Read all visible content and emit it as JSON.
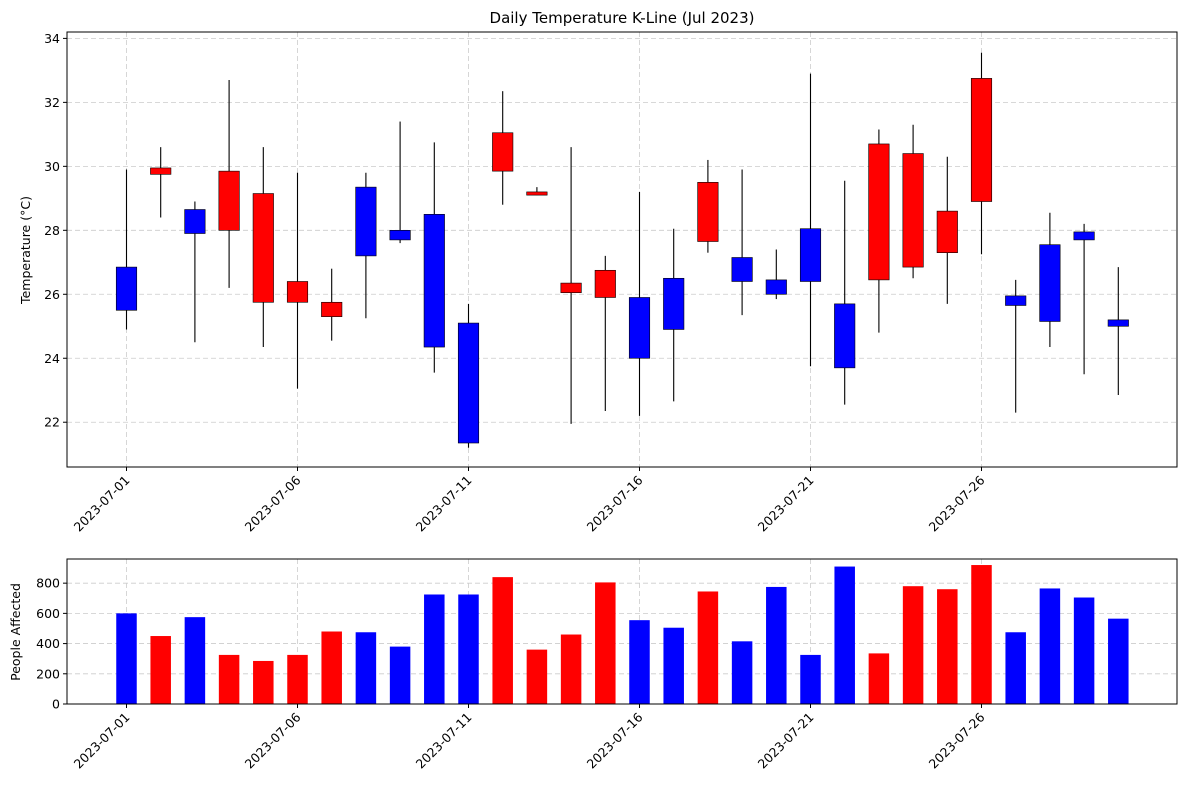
{
  "chart_data": [
    {
      "type": "candlestick",
      "title": "Daily Temperature K-Line (Jul 2023)",
      "xlabel": "",
      "ylabel": "Temperature (°C)",
      "ylim": [
        20.6,
        34.2
      ],
      "yticks": [
        22,
        24,
        26,
        28,
        30,
        32,
        34
      ],
      "xtick_labels": [
        "2023-07-01",
        "2023-07-06",
        "2023-07-11",
        "2023-07-16",
        "2023-07-21",
        "2023-07-26"
      ],
      "xtick_indices": [
        0,
        5,
        10,
        15,
        20,
        25
      ],
      "colors": {
        "up": "#ff0000",
        "down": "#0000ff",
        "wick": "#000000"
      },
      "grid": true,
      "dates": [
        "2023-07-01",
        "2023-07-02",
        "2023-07-03",
        "2023-07-04",
        "2023-07-05",
        "2023-07-06",
        "2023-07-07",
        "2023-07-08",
        "2023-07-09",
        "2023-07-10",
        "2023-07-11",
        "2023-07-12",
        "2023-07-13",
        "2023-07-14",
        "2023-07-15",
        "2023-07-16",
        "2023-07-17",
        "2023-07-18",
        "2023-07-19",
        "2023-07-20",
        "2023-07-21",
        "2023-07-22",
        "2023-07-23",
        "2023-07-24",
        "2023-07-25",
        "2023-07-26",
        "2023-07-27",
        "2023-07-28",
        "2023-07-29",
        "2023-07-30"
      ],
      "candles": [
        {
          "o": 25.5,
          "h": 29.9,
          "l": 24.9,
          "c": 26.85,
          "dir": "down"
        },
        {
          "o": 29.75,
          "h": 30.6,
          "l": 28.4,
          "c": 29.95,
          "dir": "up"
        },
        {
          "o": 27.9,
          "h": 28.9,
          "l": 24.5,
          "c": 28.65,
          "dir": "down"
        },
        {
          "o": 28.0,
          "h": 32.7,
          "l": 26.2,
          "c": 29.85,
          "dir": "up"
        },
        {
          "o": 25.75,
          "h": 30.6,
          "l": 24.35,
          "c": 29.15,
          "dir": "up"
        },
        {
          "o": 25.75,
          "h": 29.8,
          "l": 23.05,
          "c": 26.4,
          "dir": "up"
        },
        {
          "o": 25.3,
          "h": 26.8,
          "l": 24.55,
          "c": 25.75,
          "dir": "up"
        },
        {
          "o": 27.2,
          "h": 29.8,
          "l": 25.25,
          "c": 29.35,
          "dir": "down"
        },
        {
          "o": 27.7,
          "h": 31.4,
          "l": 27.6,
          "c": 28.0,
          "dir": "down"
        },
        {
          "o": 24.35,
          "h": 30.75,
          "l": 23.55,
          "c": 28.5,
          "dir": "down"
        },
        {
          "o": 21.35,
          "h": 25.7,
          "l": 21.2,
          "c": 25.1,
          "dir": "down"
        },
        {
          "o": 29.85,
          "h": 32.35,
          "l": 28.8,
          "c": 31.05,
          "dir": "up"
        },
        {
          "o": 29.1,
          "h": 29.35,
          "l": 29.1,
          "c": 29.2,
          "dir": "up"
        },
        {
          "o": 26.05,
          "h": 30.6,
          "l": 21.95,
          "c": 26.35,
          "dir": "up"
        },
        {
          "o": 25.9,
          "h": 27.2,
          "l": 22.35,
          "c": 26.75,
          "dir": "up"
        },
        {
          "o": 24.0,
          "h": 29.2,
          "l": 22.2,
          "c": 25.9,
          "dir": "down"
        },
        {
          "o": 24.9,
          "h": 28.05,
          "l": 22.65,
          "c": 26.5,
          "dir": "down"
        },
        {
          "o": 27.65,
          "h": 30.2,
          "l": 27.3,
          "c": 29.5,
          "dir": "up"
        },
        {
          "o": 26.4,
          "h": 29.9,
          "l": 25.35,
          "c": 27.15,
          "dir": "down"
        },
        {
          "o": 26.0,
          "h": 27.4,
          "l": 25.85,
          "c": 26.45,
          "dir": "down"
        },
        {
          "o": 26.4,
          "h": 32.9,
          "l": 23.75,
          "c": 28.05,
          "dir": "down"
        },
        {
          "o": 23.7,
          "h": 29.55,
          "l": 22.55,
          "c": 25.7,
          "dir": "down"
        },
        {
          "o": 26.45,
          "h": 31.15,
          "l": 24.8,
          "c": 30.7,
          "dir": "up"
        },
        {
          "o": 26.85,
          "h": 31.3,
          "l": 26.5,
          "c": 30.4,
          "dir": "up"
        },
        {
          "o": 27.3,
          "h": 30.3,
          "l": 25.7,
          "c": 28.6,
          "dir": "up"
        },
        {
          "o": 28.9,
          "h": 33.55,
          "l": 27.25,
          "c": 32.75,
          "dir": "up"
        },
        {
          "o": 25.65,
          "h": 26.45,
          "l": 22.3,
          "c": 25.95,
          "dir": "down"
        },
        {
          "o": 25.15,
          "h": 28.55,
          "l": 24.35,
          "c": 27.55,
          "dir": "down"
        },
        {
          "o": 27.7,
          "h": 28.2,
          "l": 23.5,
          "c": 27.95,
          "dir": "down"
        },
        {
          "o": 25.0,
          "h": 26.85,
          "l": 22.85,
          "c": 25.2,
          "dir": "down"
        }
      ]
    },
    {
      "type": "bar",
      "title": "",
      "xlabel": "",
      "ylabel": "People Affected",
      "ylim": [
        0,
        960
      ],
      "yticks": [
        0,
        200,
        400,
        600,
        800
      ],
      "xtick_labels": [
        "2023-07-01",
        "2023-07-06",
        "2023-07-11",
        "2023-07-16",
        "2023-07-21",
        "2023-07-26"
      ],
      "xtick_indices": [
        0,
        5,
        10,
        15,
        20,
        25
      ],
      "grid": true,
      "values": [
        600,
        450,
        575,
        325,
        285,
        325,
        480,
        475,
        380,
        725,
        725,
        840,
        360,
        460,
        805,
        555,
        505,
        745,
        415,
        775,
        325,
        910,
        335,
        780,
        760,
        920,
        475,
        765,
        705,
        565
      ],
      "colors_by_bar": [
        "down",
        "up",
        "down",
        "up",
        "up",
        "up",
        "up",
        "down",
        "down",
        "down",
        "down",
        "up",
        "up",
        "up",
        "up",
        "down",
        "down",
        "up",
        "down",
        "down",
        "down",
        "down",
        "up",
        "up",
        "up",
        "up",
        "down",
        "down",
        "down",
        "down"
      ]
    }
  ]
}
